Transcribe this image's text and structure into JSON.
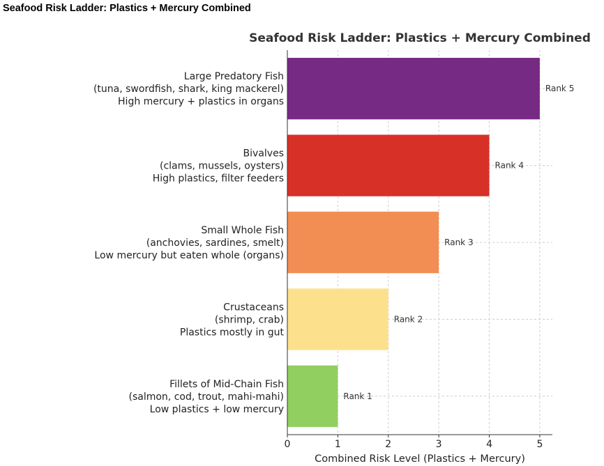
{
  "header": {
    "title": "Seafood Risk Ladder: Plastics + Mercury Combined"
  },
  "chart_data": {
    "type": "bar",
    "orientation": "horizontal",
    "title": "Seafood Risk Ladder: Plastics + Mercury Combined",
    "xlabel": "Combined Risk Level (Plastics + Mercury)",
    "ylabel": "",
    "xlim": [
      0,
      5.25
    ],
    "xticks": [
      "0",
      "1",
      "2",
      "3",
      "4",
      "5"
    ],
    "grid": true,
    "categories": [
      [
        "Large Predatory Fish",
        "(tuna, swordfish, shark, king mackerel)",
        "High mercury + plastics in organs"
      ],
      [
        "Bivalves",
        "(clams, mussels, oysters)",
        "High plastics, filter feeders"
      ],
      [
        "Small Whole Fish",
        "(anchovies, sardines, smelt)",
        "Low mercury but eaten whole (organs)"
      ],
      [
        "Crustaceans",
        "(shrimp, crab)",
        "Plastics mostly in gut"
      ],
      [
        "Fillets of Mid-Chain Fish",
        "(salmon, cod, trout, mahi-mahi)",
        "Low plastics + low mercury"
      ]
    ],
    "values": [
      5,
      4,
      3,
      2,
      1
    ],
    "data_labels": [
      "Rank 5",
      "Rank 4",
      "Rank 3",
      "Rank 2",
      "Rank 1"
    ],
    "colors": [
      "#762a83",
      "#d73027",
      "#f28e54",
      "#fde08b",
      "#91cf60"
    ]
  }
}
